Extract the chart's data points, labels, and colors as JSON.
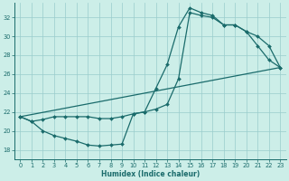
{
  "bg_color": "#cceee8",
  "grid_color": "#99cccc",
  "line_color": "#1a6b6b",
  "xlabel": "Humidex (Indice chaleur)",
  "xlim": [
    -0.5,
    23.5
  ],
  "ylim": [
    17,
    33.5
  ],
  "yticks": [
    18,
    20,
    22,
    24,
    26,
    28,
    30,
    32
  ],
  "xticks": [
    0,
    1,
    2,
    3,
    4,
    5,
    6,
    7,
    8,
    9,
    10,
    11,
    12,
    13,
    14,
    15,
    16,
    17,
    18,
    19,
    20,
    21,
    22,
    23
  ],
  "line1_x": [
    0,
    1,
    2,
    3,
    4,
    5,
    6,
    7,
    8,
    9,
    10,
    11,
    12,
    13,
    14,
    15,
    16,
    17,
    18,
    19,
    20,
    21,
    22,
    23
  ],
  "line1_y": [
    21.5,
    21.0,
    20.0,
    19.5,
    19.2,
    18.9,
    18.5,
    18.4,
    18.5,
    18.6,
    21.8,
    22.0,
    24.5,
    27.0,
    31.0,
    33.0,
    32.5,
    32.2,
    31.2,
    31.2,
    30.5,
    30.0,
    29.0,
    26.7
  ],
  "line2_x": [
    0,
    1,
    2,
    3,
    4,
    5,
    6,
    7,
    8,
    9,
    10,
    11,
    12,
    13,
    14,
    15,
    16,
    17,
    18,
    19,
    20,
    21,
    22,
    23
  ],
  "line2_y": [
    21.5,
    21.0,
    21.2,
    21.5,
    21.5,
    21.5,
    21.5,
    21.3,
    21.3,
    21.5,
    21.8,
    22.0,
    22.3,
    22.8,
    25.5,
    32.5,
    32.2,
    32.0,
    31.2,
    31.2,
    30.5,
    29.0,
    27.5,
    26.7
  ],
  "line3_x": [
    0,
    23
  ],
  "line3_y": [
    21.5,
    26.7
  ],
  "marker_size": 2.0,
  "line_width": 0.9,
  "xlabel_fontsize": 5.5,
  "tick_fontsize": 4.8
}
